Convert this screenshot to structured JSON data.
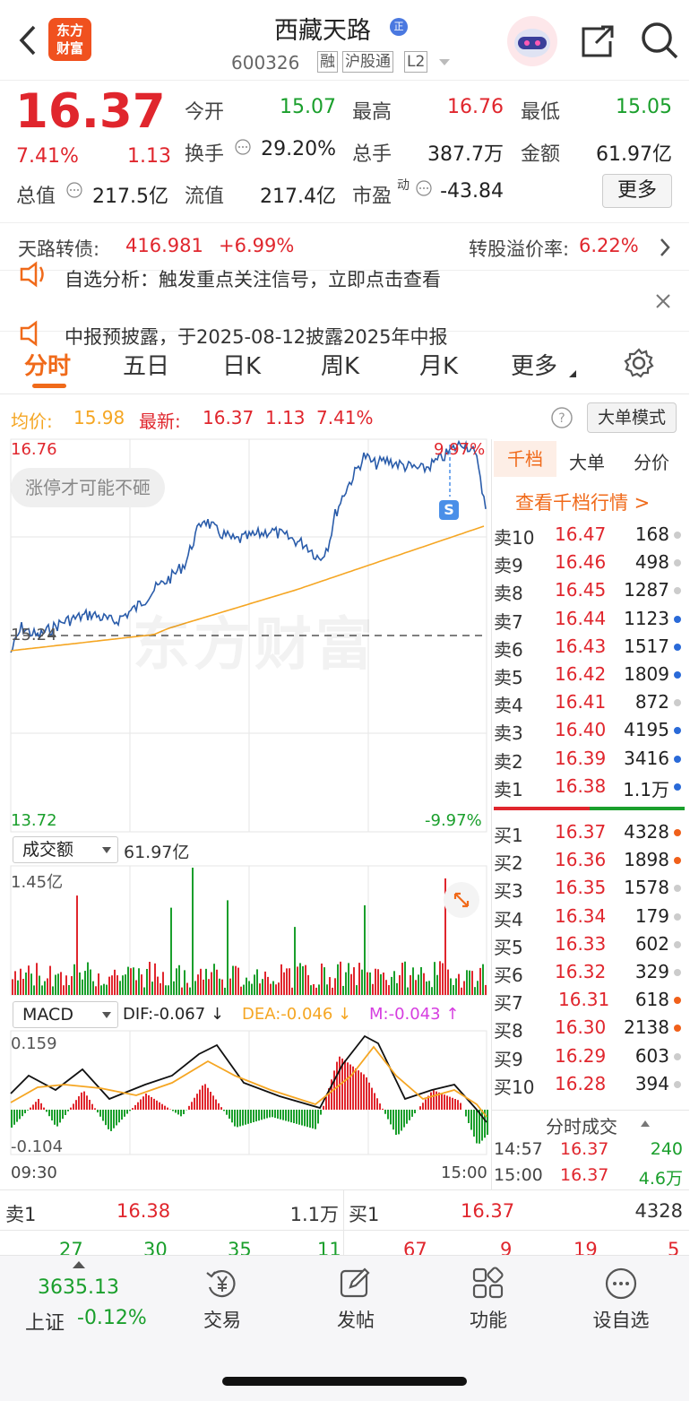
{
  "header": {
    "logo_line1": "东方",
    "logo_line2": "财富",
    "stock_name": "西藏天路",
    "badge": "正",
    "code": "600326",
    "tags": [
      "融",
      "沪股通",
      "L2"
    ]
  },
  "quote": {
    "price": "16.37",
    "change_pct": "7.41%",
    "change": "1.13",
    "open_label": "今开",
    "open": "15.07",
    "high_label": "最高",
    "high": "16.76",
    "low_label": "最低",
    "low": "15.05",
    "turnover_label": "换手",
    "turnover": "29.20%",
    "volume_label": "总手",
    "volume": "387.7万",
    "amount_label": "金额",
    "amount": "61.97亿",
    "mktcap_label": "总值",
    "mktcap": "217.5亿",
    "float_label": "流值",
    "float": "217.4亿",
    "pe_label": "市盈",
    "pe_sup": "动",
    "pe": "-43.84",
    "more_button": "更多"
  },
  "bond": {
    "label": "天路转债:",
    "price": "416.981",
    "pct": "+6.99%",
    "premium_label": "转股溢价率:",
    "premium": "6.22%"
  },
  "notice": {
    "line1": "自选分析：触发重点关注信号，立即点击查看",
    "line2": "中报预披露，于2025-08-12披露2025年中报"
  },
  "tabs": [
    "分时",
    "五日",
    "日K",
    "周K",
    "月K",
    "更多"
  ],
  "info_bar": {
    "avg_label": "均价:",
    "avg": "15.98",
    "latest_label": "最新:",
    "latest": "16.37",
    "chg": "1.13",
    "pct": "7.41%",
    "mode_button": "大单模式"
  },
  "chart": {
    "y_top": "16.76",
    "y_mid": "15.24",
    "y_bottom": "13.72",
    "pct_top": "9.97%",
    "pct_bottom": "-9.97%",
    "bubble": "涨停才可能不砸",
    "watermark": "东方财富",
    "signal": "S",
    "vol_label": "成交额",
    "vol_total": "61.97亿",
    "vol_max": "1.45亿",
    "macd_label": "MACD",
    "dif": "DIF:-0.067 ↓",
    "dea": "DEA:-0.046 ↓",
    "m": "M:-0.043 ↑",
    "macd_top": "0.159",
    "macd_bottom": "-0.104",
    "time_start": "09:30",
    "time_end": "15:00",
    "colors": {
      "price": "#2a5caa",
      "avg": "#f5a623",
      "up": "#e0262d",
      "down": "#1a9f2c",
      "m": "#d63de0"
    }
  },
  "orderbook_tabs": [
    "千档",
    "大单",
    "分价"
  ],
  "orderbook_link": "查看千档行情 >",
  "asks": [
    {
      "label": "卖10",
      "price": "16.47",
      "vol": "168",
      "dot": "#cccccc"
    },
    {
      "label": "卖9",
      "price": "16.46",
      "vol": "498",
      "dot": "#cccccc"
    },
    {
      "label": "卖8",
      "price": "16.45",
      "vol": "1287",
      "dot": "#cccccc"
    },
    {
      "label": "卖7",
      "price": "16.44",
      "vol": "1123",
      "dot": "#2a6ad8"
    },
    {
      "label": "卖6",
      "price": "16.43",
      "vol": "1517",
      "dot": "#2a6ad8"
    },
    {
      "label": "卖5",
      "price": "16.42",
      "vol": "1809",
      "dot": "#2a6ad8"
    },
    {
      "label": "卖4",
      "price": "16.41",
      "vol": "872",
      "dot": "#cccccc"
    },
    {
      "label": "卖3",
      "price": "16.40",
      "vol": "4195",
      "dot": "#2a6ad8"
    },
    {
      "label": "卖2",
      "price": "16.39",
      "vol": "3416",
      "dot": "#2a6ad8"
    },
    {
      "label": "卖1",
      "price": "16.38",
      "vol": "1.1万",
      "dot": "#2a6ad8"
    }
  ],
  "bids": [
    {
      "label": "买1",
      "price": "16.37",
      "vol": "4328",
      "dot": "#f0601a"
    },
    {
      "label": "买2",
      "price": "16.36",
      "vol": "1898",
      "dot": "#f0601a"
    },
    {
      "label": "买3",
      "price": "16.35",
      "vol": "1578",
      "dot": "#cccccc"
    },
    {
      "label": "买4",
      "price": "16.34",
      "vol": "179",
      "dot": "#cccccc"
    },
    {
      "label": "买5",
      "price": "16.33",
      "vol": "602",
      "dot": "#cccccc"
    },
    {
      "label": "买6",
      "price": "16.32",
      "vol": "329",
      "dot": "#cccccc"
    },
    {
      "label": "买7",
      "price": "16.31",
      "vol": "618",
      "dot": "#f0601a"
    },
    {
      "label": "买8",
      "price": "16.30",
      "vol": "2138",
      "dot": "#f0601a"
    },
    {
      "label": "买9",
      "price": "16.29",
      "vol": "603",
      "dot": "#cccccc"
    },
    {
      "label": "买10",
      "price": "16.28",
      "vol": "394",
      "dot": "#cccccc"
    }
  ],
  "ticks": {
    "header": "分时成交",
    "rows": [
      {
        "time": "14:57",
        "price": "16.37",
        "vol": "240"
      },
      {
        "time": "15:00",
        "price": "16.37",
        "vol": "4.6万"
      }
    ]
  },
  "level1": {
    "ask_label": "卖1",
    "ask_price": "16.38",
    "ask_vol": "1.1万",
    "bid_label": "买1",
    "bid_price": "16.37",
    "bid_vol": "4328",
    "ask_row2": [
      "27",
      "30",
      "35",
      "11"
    ],
    "bid_row2": [
      "67",
      "9",
      "19",
      "5"
    ]
  },
  "bottom": {
    "index_value": "3635.13",
    "index_name": "上证",
    "index_pct": "-0.12%",
    "items": [
      "交易",
      "发帖",
      "功能",
      "设自选"
    ]
  }
}
